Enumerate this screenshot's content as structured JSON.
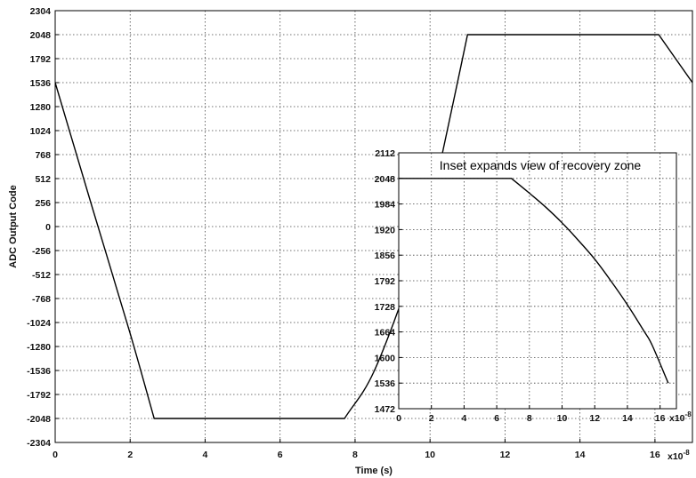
{
  "chart_data": [
    {
      "type": "line",
      "xlabel": "Time (s)",
      "ylabel": "ADC Output Code",
      "xlim": [
        0,
        1.7e-07
      ],
      "ylim": [
        -2304,
        2304
      ],
      "x_tick_values": [
        0,
        2e-08,
        4e-08,
        6e-08,
        8e-08,
        1e-07,
        1.2e-07,
        1.4e-07,
        1.6e-07
      ],
      "x_tick_labels": [
        "0",
        "2",
        "4",
        "6",
        "8",
        "10",
        "12",
        "14",
        "16"
      ],
      "x_exponent_label": "x10",
      "x_exponent_power": "-8",
      "y_ticks": [
        2304,
        2048,
        1792,
        1536,
        1280,
        1024,
        768,
        512,
        256,
        0,
        -256,
        -512,
        -768,
        -1024,
        -1280,
        -1536,
        -1792,
        -2048,
        -2304
      ],
      "grid": true,
      "series": [
        {
          "color": "#000000",
          "points": [
            [
              0,
              1536
            ],
            [
              1e-08,
              190
            ],
            [
              2e-08,
              -1140
            ],
            [
              2.64e-08,
              -2048
            ],
            [
              7.72e-08,
              -2048
            ],
            [
              8.5e-08,
              -1550
            ],
            [
              9.5e-08,
              -500
            ],
            [
              1e-07,
              200
            ],
            [
              1.05e-07,
              1100
            ],
            [
              1.1e-07,
              2048
            ],
            [
              1.61e-07,
              2048
            ],
            [
              1.7e-07,
              1536
            ]
          ]
        }
      ]
    },
    {
      "type": "line",
      "title": "Inset expands view of recovery zone",
      "xlim": [
        0,
        1.7e-07
      ],
      "ylim": [
        1472,
        2112
      ],
      "x_tick_values": [
        0,
        2e-08,
        4e-08,
        6e-08,
        8e-08,
        1e-07,
        1.2e-07,
        1.4e-07,
        1.6e-07
      ],
      "x_tick_labels": [
        "0",
        "2",
        "4",
        "6",
        "8",
        "10",
        "12",
        "14",
        "16"
      ],
      "x_exponent_label": "x10",
      "x_exponent_power": "-8",
      "y_ticks": [
        2112,
        2048,
        1984,
        1920,
        1856,
        1792,
        1728,
        1664,
        1600,
        1536,
        1472
      ],
      "grid": true,
      "series": [
        {
          "color": "#000000",
          "points": [
            [
              0,
              2048
            ],
            [
              6.9e-08,
              2048
            ],
            [
              8e-08,
              2011
            ],
            [
              9e-08,
              1976
            ],
            [
              1e-07,
              1937
            ],
            [
              1.1e-07,
              1893
            ],
            [
              1.2e-07,
              1846
            ],
            [
              1.3e-07,
              1791
            ],
            [
              1.4e-07,
              1732
            ],
            [
              1.5e-07,
              1667
            ],
            [
              1.55e-07,
              1632
            ],
            [
              1.65e-07,
              1536
            ]
          ]
        }
      ]
    }
  ]
}
